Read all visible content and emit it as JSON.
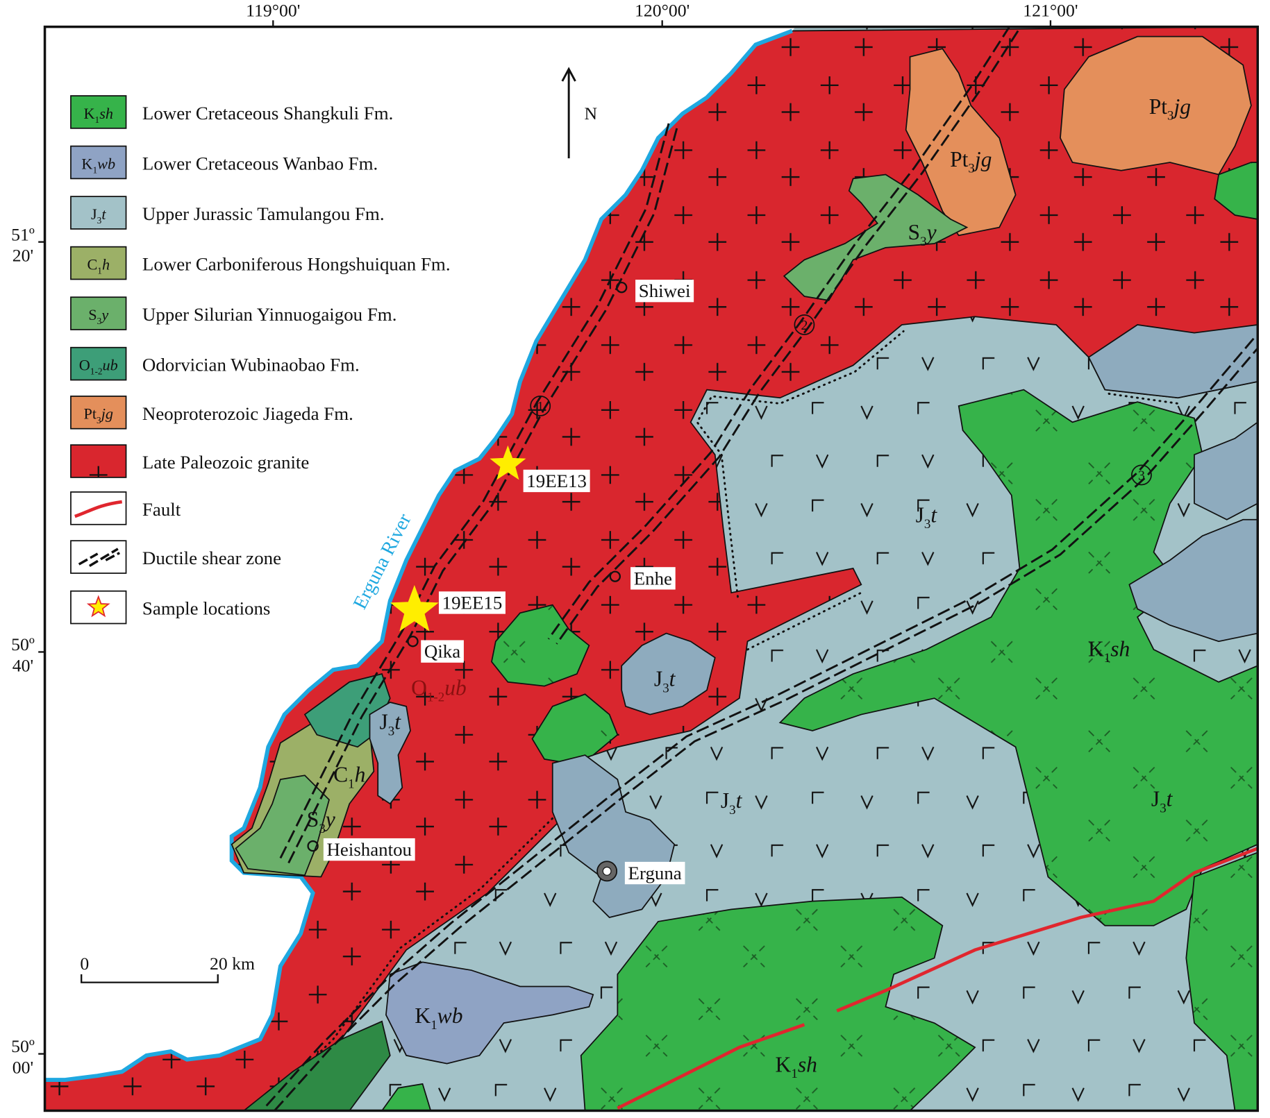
{
  "axes": {
    "top": [
      "119°00'",
      "120°00'",
      "121°00'"
    ],
    "left": [
      [
        "51º",
        "20'"
      ],
      [
        "50º",
        "40'"
      ],
      [
        "50º",
        "00'"
      ]
    ]
  },
  "legend": [
    {
      "code": {
        "base": "K",
        "sub": "1",
        "rest": "sh"
      },
      "label": "Lower Cretaceous Shangkuli Fm.",
      "color": "#36b34a"
    },
    {
      "code": {
        "base": "K",
        "sub": "1",
        "rest": "wb"
      },
      "label": "Lower Cretaceous Wanbao Fm.",
      "color": "#8fa3c4"
    },
    {
      "code": {
        "base": "J",
        "sub": "3",
        "rest": "t"
      },
      "label": "Upper Jurassic Tamulangou Fm.",
      "color": "#a3c2c8"
    },
    {
      "code": {
        "base": "C",
        "sub": "1",
        "rest": "h"
      },
      "label": "Lower Carboniferous Hongshuiquan Fm.",
      "color": "#9cb067"
    },
    {
      "code": {
        "base": "S",
        "sub": "3",
        "rest": "y"
      },
      "label": "Upper Silurian Yinnuogaigou Fm.",
      "color": "#6bb06b"
    },
    {
      "code": {
        "base": "O",
        "sub": "1-2",
        "rest": "ub"
      },
      "label": "Odorvician Wubinaobao Fm.",
      "color": "#3d9e78"
    },
    {
      "code": {
        "base": "Pt",
        "sub": "3",
        "rest": "jg"
      },
      "label": "Neoproterozoic Jiageda Fm.",
      "color": "#e48f5b"
    },
    {
      "label": "Late Paleozoic granite",
      "color": "#d9262e"
    },
    {
      "label": "Fault"
    },
    {
      "label": "Ductile shear zone"
    },
    {
      "label": "Sample locations"
    }
  ],
  "map_labels": [
    {
      "base": "Pt",
      "sub": "3",
      "rest": "jg"
    },
    {
      "base": "Pt",
      "sub": "3",
      "rest": "jg"
    },
    {
      "base": "S",
      "sub": "3",
      "rest": "y"
    },
    {
      "base": "J",
      "sub": "3",
      "rest": "t"
    },
    {
      "base": "J",
      "sub": "3",
      "rest": "t"
    },
    {
      "base": "J",
      "sub": "3",
      "rest": "t"
    },
    {
      "base": "C",
      "sub": "1",
      "rest": "h"
    },
    {
      "base": "S",
      "sub": "3",
      "rest": "y"
    },
    {
      "base": "J",
      "sub": "3",
      "rest": "t"
    },
    {
      "base": "J",
      "sub": "3",
      "rest": "t"
    },
    {
      "base": "K",
      "sub": "1",
      "rest": "sh"
    },
    {
      "base": "K",
      "sub": "1",
      "rest": "sh"
    },
    {
      "base": "K",
      "sub": "1",
      "rest": "wb"
    },
    {
      "base": "O",
      "sub": "1-2",
      "rest": "ub"
    }
  ],
  "places": [
    "Shiwei",
    "Enhe",
    "Qika",
    "Heishantou",
    "Erguna"
  ],
  "samples": [
    "19EE13",
    "19EE15"
  ],
  "shear_zone_numbers": [
    "1",
    "2",
    "3"
  ],
  "river": "Erguna River",
  "north": "N",
  "scale": {
    "zero": "0",
    "distance": "20 km"
  }
}
